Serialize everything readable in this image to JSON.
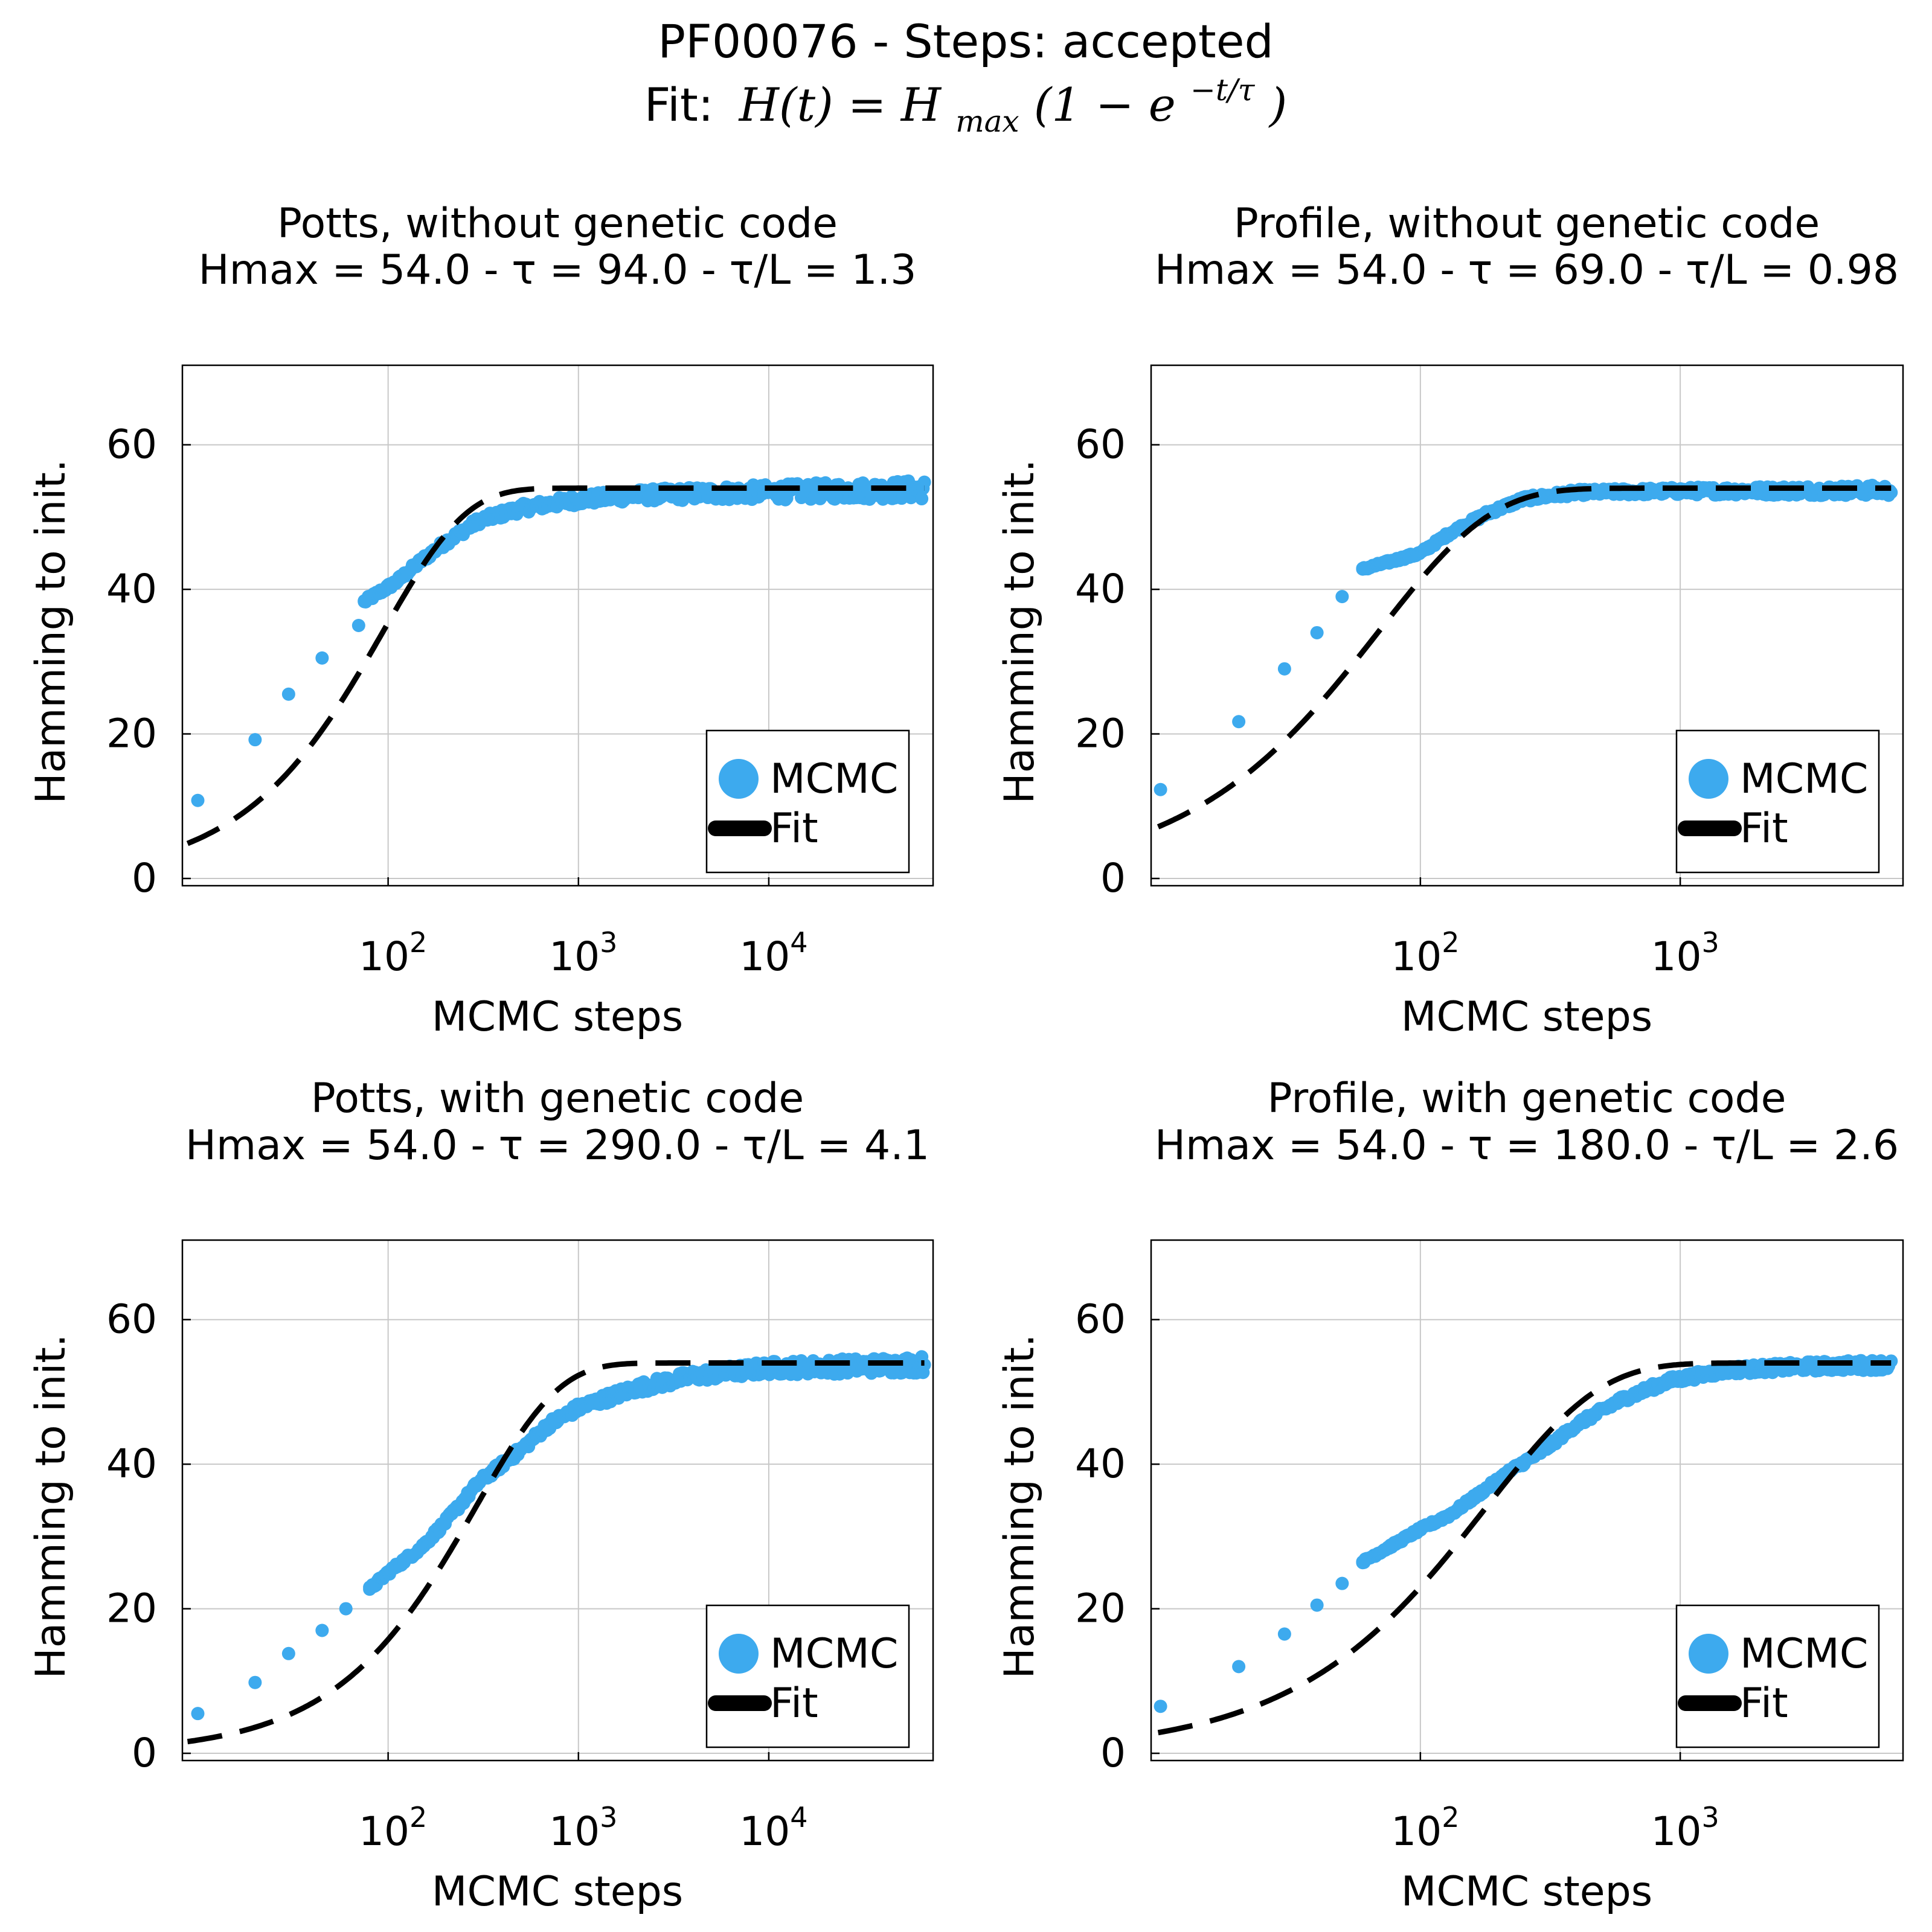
{
  "figure": {
    "title": "PF00076 - Steps: accepted",
    "fit_label": "Fit:",
    "fit_formula": {
      "lhs": "H(t) = H",
      "sub": "max",
      "mid": "(1 − e",
      "sup": "−t/τ",
      "end": ")"
    }
  },
  "colors": {
    "mcmc": "#3daaee",
    "fit": "#000000",
    "grid": "#c8c8c8",
    "axis": "#000000"
  },
  "legend": {
    "mcmc": "MCMC",
    "fit": "Fit",
    "placement": "bottom-right"
  },
  "chart_data": [
    {
      "type": "scatter",
      "title": "Potts, without genetic code",
      "subtitle": "Hmax = 54.0 - τ = 94.0 - τ/L = 1.3",
      "xlabel": "MCMC steps",
      "ylabel": "Hamming to init.",
      "xscale": "log",
      "xlim": [
        8.3,
        73000
      ],
      "ylim": [
        -1,
        71
      ],
      "yticks": [
        0,
        20,
        40,
        60
      ],
      "xticks": [
        100,
        1000,
        10000
      ],
      "xtick_labels": [
        {
          "base": "10",
          "exp": "2"
        },
        {
          "base": "10",
          "exp": "3"
        },
        {
          "base": "10",
          "exp": "4"
        }
      ],
      "grid": true,
      "fit": {
        "hmax": 54.0,
        "tau": 94.0
      },
      "series": [
        {
          "name": "MCMC",
          "kind": "scatter",
          "anchors": [
            [
              10,
              10.8
            ],
            [
              20,
              19.2
            ],
            [
              30,
              25.5
            ],
            [
              45,
              30.5
            ],
            [
              70,
              35
            ],
            [
              75,
              38.3
            ],
            [
              110,
              41
            ],
            [
              150,
              44
            ],
            [
              200,
              46.5
            ],
            [
              300,
              49.5
            ],
            [
              500,
              51.2
            ],
            [
              1000,
              52.4
            ],
            [
              2000,
              53
            ],
            [
              5000,
              53.3
            ],
            [
              20000,
              53.6
            ],
            [
              65000,
              53.8
            ]
          ],
          "noise": 0.9
        },
        {
          "name": "Fit",
          "kind": "dashed-line"
        }
      ]
    },
    {
      "type": "scatter",
      "title": "Profile, without genetic code",
      "subtitle": "Hmax = 54.0 - τ = 69.0 - τ/L = 0.98",
      "xlabel": "MCMC steps",
      "ylabel": "Hamming to init.",
      "xscale": "log",
      "xlim": [
        9.2,
        7200
      ],
      "ylim": [
        -1,
        71
      ],
      "yticks": [
        0,
        20,
        40,
        60
      ],
      "xticks": [
        100,
        1000
      ],
      "xtick_labels": [
        {
          "base": "10",
          "exp": "2"
        },
        {
          "base": "10",
          "exp": "3"
        }
      ],
      "grid": true,
      "fit": {
        "hmax": 54.0,
        "tau": 69.0
      },
      "series": [
        {
          "name": "MCMC",
          "kind": "scatter",
          "anchors": [
            [
              10,
              12.3
            ],
            [
              20,
              21.7
            ],
            [
              30,
              29
            ],
            [
              40,
              34
            ],
            [
              50,
              39
            ],
            [
              60,
              42.8
            ],
            [
              100,
              45
            ],
            [
              130,
              47.8
            ],
            [
              180,
              50.5
            ],
            [
              250,
              52.5
            ],
            [
              400,
              53.4
            ],
            [
              1000,
              53.6
            ],
            [
              6500,
              53.7
            ]
          ],
          "noise": 0.5
        },
        {
          "name": "Fit",
          "kind": "dashed-line"
        }
      ]
    },
    {
      "type": "scatter",
      "title": "Potts, with genetic code",
      "subtitle": "Hmax = 54.0 - τ = 290.0 - τ/L = 4.1",
      "xlabel": "MCMC steps",
      "ylabel": "Hamming to init.",
      "xscale": "log",
      "xlim": [
        8.3,
        73000
      ],
      "ylim": [
        -1,
        71
      ],
      "yticks": [
        0,
        20,
        40,
        60
      ],
      "xticks": [
        100,
        1000,
        10000
      ],
      "xtick_labels": [
        {
          "base": "10",
          "exp": "2"
        },
        {
          "base": "10",
          "exp": "3"
        },
        {
          "base": "10",
          "exp": "4"
        }
      ],
      "grid": true,
      "fit": {
        "hmax": 54.0,
        "tau": 290.0
      },
      "series": [
        {
          "name": "MCMC",
          "kind": "scatter",
          "anchors": [
            [
              10,
              5.5
            ],
            [
              20,
              9.8
            ],
            [
              30,
              13.8
            ],
            [
              45,
              17
            ],
            [
              60,
              20
            ],
            [
              80,
              22.7
            ],
            [
              100,
              25
            ],
            [
              150,
              28.5
            ],
            [
              200,
              32
            ],
            [
              300,
              37.5
            ],
            [
              500,
              42
            ],
            [
              700,
              45.5
            ],
            [
              1000,
              47.8
            ],
            [
              2000,
              50.5
            ],
            [
              4000,
              52.2
            ],
            [
              10000,
              53.3
            ],
            [
              65000,
              53.8
            ]
          ],
          "noise": 0.8
        },
        {
          "name": "Fit",
          "kind": "dashed-line"
        }
      ]
    },
    {
      "type": "scatter",
      "title": "Profile, with genetic code",
      "subtitle": "Hmax = 54.0 - τ = 180.0 - τ/L = 2.6",
      "xlabel": "MCMC steps",
      "ylabel": "Hamming to init.",
      "xscale": "log",
      "xlim": [
        9.2,
        7200
      ],
      "ylim": [
        -1,
        71
      ],
      "yticks": [
        0,
        20,
        40,
        60
      ],
      "xticks": [
        100,
        1000
      ],
      "xtick_labels": [
        {
          "base": "10",
          "exp": "2"
        },
        {
          "base": "10",
          "exp": "3"
        }
      ],
      "grid": true,
      "fit": {
        "hmax": 54.0,
        "tau": 180.0
      },
      "series": [
        {
          "name": "MCMC",
          "kind": "scatter",
          "anchors": [
            [
              10,
              6.5
            ],
            [
              20,
              12
            ],
            [
              30,
              16.5
            ],
            [
              40,
              20.5
            ],
            [
              50,
              23.5
            ],
            [
              60,
              26.5
            ],
            [
              80,
              29
            ],
            [
              100,
              31
            ],
            [
              130,
              33
            ],
            [
              170,
              36
            ],
            [
              220,
              39
            ],
            [
              300,
              42
            ],
            [
              400,
              45.5
            ],
            [
              600,
              49
            ],
            [
              900,
              51.5
            ],
            [
              1500,
              53
            ],
            [
              3000,
              53.5
            ],
            [
              7000,
              53.8
            ]
          ],
          "noise": 0.5
        },
        {
          "name": "Fit",
          "kind": "dashed-line"
        }
      ]
    }
  ]
}
